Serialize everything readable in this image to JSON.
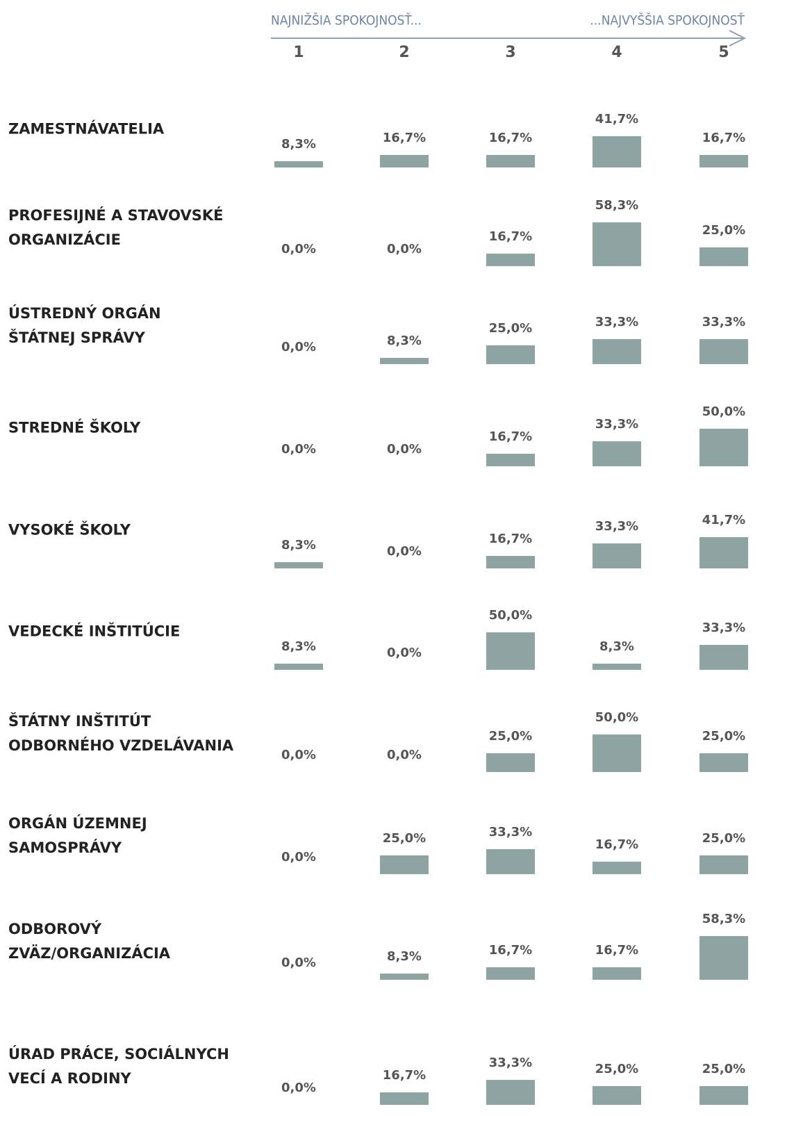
{
  "chart_data": {
    "type": "bar",
    "scale_low": "NAJNIŽŠIA SPOKOJNOSŤ...",
    "scale_high": "...NAJVYŠŠIA SPOKOJNOSŤ",
    "categories": [
      "1",
      "2",
      "3",
      "4",
      "5"
    ],
    "color": "#8ea4a2",
    "ylim": [
      0,
      100
    ],
    "series": [
      {
        "name": "ZAMESTNÁVATELIA",
        "values": [
          8.3,
          16.7,
          16.7,
          41.7,
          16.7
        ],
        "value_labels": [
          "8,3%",
          "16,7%",
          "16,7%",
          "41,7%",
          "16,7%"
        ]
      },
      {
        "name": "PROFESIJNÉ A STAVOVSKÉ\nORGANIZÁCIE",
        "values": [
          0,
          0,
          16.7,
          58.3,
          25.0
        ],
        "value_labels": [
          "0,0%",
          "0,0%",
          "16,7%",
          "58,3%",
          "25,0%"
        ]
      },
      {
        "name": "ÚSTREDNÝ ORGÁN\nŠTÁTNEJ SPRÁVY",
        "values": [
          0,
          8.3,
          25.0,
          33.3,
          33.3
        ],
        "value_labels": [
          "0,0%",
          "8,3%",
          "25,0%",
          "33,3%",
          "33,3%"
        ]
      },
      {
        "name": "STREDNÉ ŠKOLY",
        "values": [
          0,
          0,
          16.7,
          33.3,
          50.0
        ],
        "value_labels": [
          "0,0%",
          "0,0%",
          "16,7%",
          "33,3%",
          "50,0%"
        ]
      },
      {
        "name": "VYSOKÉ ŠKOLY",
        "values": [
          8.3,
          0,
          16.7,
          33.3,
          41.7
        ],
        "value_labels": [
          "8,3%",
          "0,0%",
          "16,7%",
          "33,3%",
          "41,7%"
        ]
      },
      {
        "name": "VEDECKÉ INŠTITÚCIE",
        "values": [
          8.3,
          0,
          50.0,
          8.3,
          33.3
        ],
        "value_labels": [
          "8,3%",
          "0,0%",
          "50,0%",
          "8,3%",
          "33,3%"
        ]
      },
      {
        "name": "ŠTÁTNY INŠTITÚT\nODBORNÉHO VZDELÁVANIA",
        "values": [
          0,
          0,
          25.0,
          50.0,
          25.0
        ],
        "value_labels": [
          "0,0%",
          "0,0%",
          "25,0%",
          "50,0%",
          "25,0%"
        ]
      },
      {
        "name": "ORGÁN ÚZEMNEJ\nSAMOSPRÁVY",
        "values": [
          0,
          25.0,
          33.3,
          16.7,
          25.0
        ],
        "value_labels": [
          "0,0%",
          "25,0%",
          "33,3%",
          "16,7%",
          "25,0%"
        ]
      },
      {
        "name": "ODBOROVÝ\nZVÄZ/ORGANIZÁCIA",
        "values": [
          0,
          8.3,
          16.7,
          16.7,
          58.3
        ],
        "value_labels": [
          "0,0%",
          "8,3%",
          "16,7%",
          "16,7%",
          "58,3%"
        ]
      },
      {
        "name": "ÚRAD PRÁCE, SOCIÁLNYCH\nVECÍ A RODINY",
        "values": [
          0,
          16.7,
          33.3,
          25.0,
          25.0
        ],
        "value_labels": [
          "0,0%",
          "16,7%",
          "33,3%",
          "25,0%",
          "25,0%"
        ]
      }
    ]
  }
}
